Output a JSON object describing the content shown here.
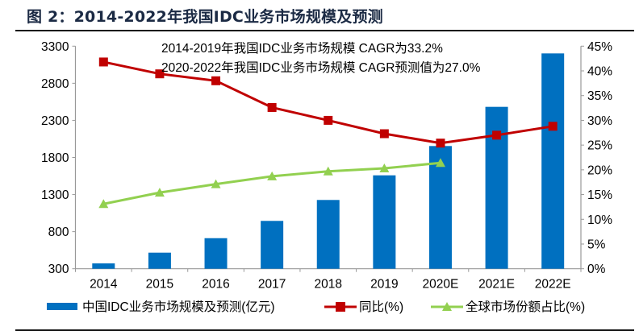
{
  "title": "图 2：2014-2022年我国IDC业务市场规模及预测",
  "chart_data": {
    "type": "bar+line",
    "title": "图 2：2014-2022年我国IDC业务市场规模及预测",
    "categories": [
      "2014",
      "2015",
      "2016",
      "2017",
      "2018",
      "2019",
      "2020E",
      "2021E",
      "2022E"
    ],
    "y_left": {
      "min": 300,
      "max": 3300,
      "ticks": [
        300,
        800,
        1300,
        1800,
        2300,
        2800,
        3300
      ]
    },
    "y_right": {
      "min": 0,
      "max": 45,
      "ticks": [
        "0%",
        "5%",
        "10%",
        "15%",
        "20%",
        "25%",
        "30%",
        "35%",
        "40%",
        "45%"
      ]
    },
    "series": [
      {
        "name": "中国IDC业务市场规模及预测(亿元)",
        "type": "bar",
        "axis": "left",
        "color": "#0070C0",
        "values": [
          372,
          517,
          712,
          945,
          1227,
          1559,
          1954,
          2482,
          3202
        ]
      },
      {
        "name": "同比(%)",
        "type": "line",
        "marker": "square",
        "axis": "right",
        "color": "#C00000",
        "values": [
          41.8,
          39.4,
          38.0,
          32.6,
          30.0,
          27.3,
          25.4,
          27.0,
          28.8
        ]
      },
      {
        "name": "全球市场份额占比(%)",
        "type": "line",
        "marker": "triangle",
        "axis": "right",
        "color": "#92D050",
        "values": [
          13.1,
          15.4,
          17.1,
          18.7,
          19.7,
          20.3,
          21.4,
          null,
          null
        ]
      }
    ],
    "annotations": [
      "2014-2019年我国IDC业务市场规模 CAGR为33.2%",
      "2020-2022年我国IDC业务市场规模 CAGR预测值为27.0%"
    ],
    "legend_position": "bottom",
    "grid": false
  }
}
